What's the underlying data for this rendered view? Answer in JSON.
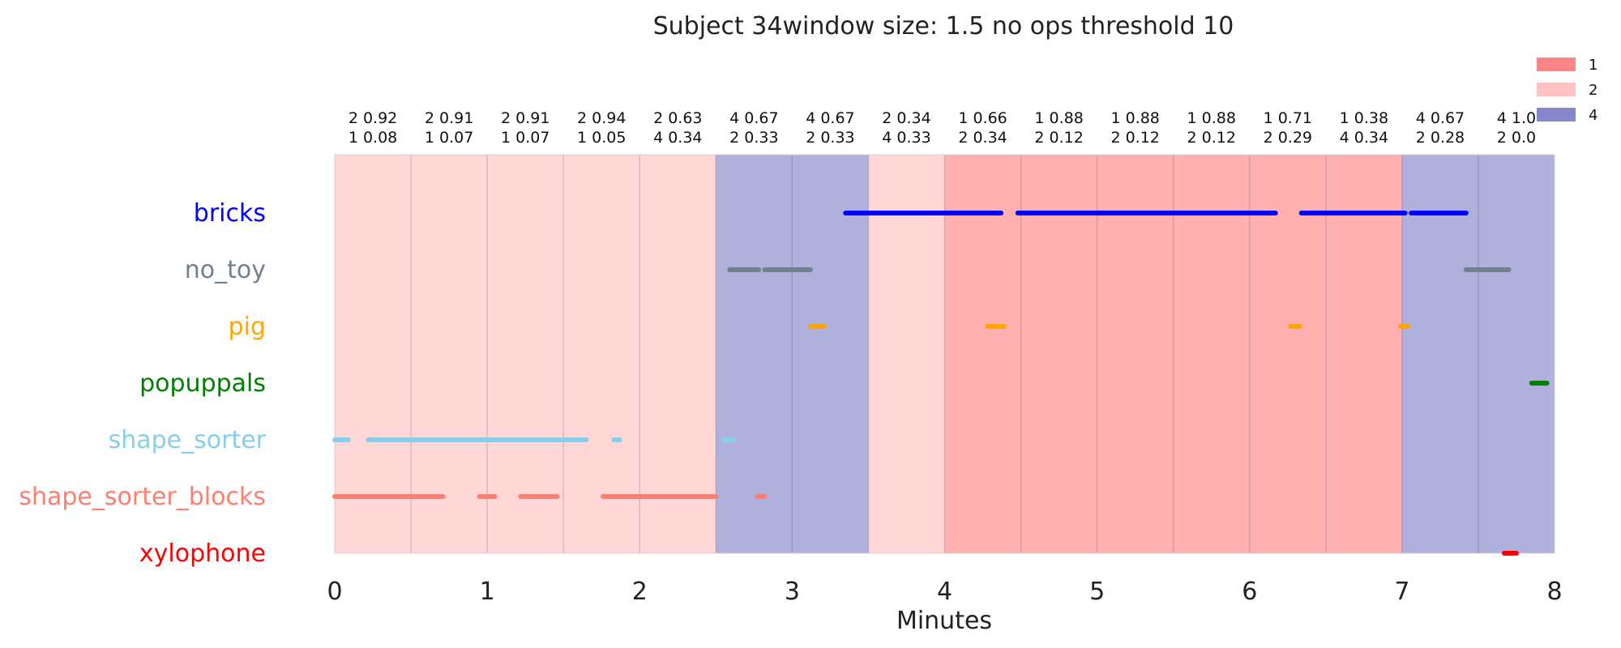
{
  "chart_data": {
    "type": "timeline",
    "title": "Subject 34window size: 1.5 no ops threshold 10",
    "xlabel": "Minutes",
    "xlim": [
      0,
      8
    ],
    "x_ticks": [
      "0",
      "1",
      "2",
      "3",
      "4",
      "5",
      "6",
      "7",
      "8"
    ],
    "colors": {
      "1": "#ff7f7f",
      "2": "#ffbfbf",
      "4": "#8080c8"
    },
    "legend": {
      "placement": "top-right",
      "entries": [
        "1",
        "2",
        "4"
      ]
    },
    "windows": [
      {
        "start": 0.0,
        "end": 0.5,
        "state": "2",
        "line1": "2 0.92",
        "line2": "1 0.08"
      },
      {
        "start": 0.5,
        "end": 1.0,
        "state": "2",
        "line1": "2 0.91",
        "line2": "1 0.07"
      },
      {
        "start": 1.0,
        "end": 1.5,
        "state": "2",
        "line1": "2 0.91",
        "line2": "1 0.07"
      },
      {
        "start": 1.5,
        "end": 2.0,
        "state": "2",
        "line1": "2 0.94",
        "line2": "1 0.05"
      },
      {
        "start": 2.0,
        "end": 2.5,
        "state": "2",
        "line1": "2 0.63",
        "line2": "4 0.34"
      },
      {
        "start": 2.5,
        "end": 3.0,
        "state": "4",
        "line1": "4 0.67",
        "line2": "2 0.33"
      },
      {
        "start": 3.0,
        "end": 3.5,
        "state": "4",
        "line1": "4 0.67",
        "line2": "2 0.33"
      },
      {
        "start": 3.5,
        "end": 4.0,
        "state": "2",
        "line1": "2 0.34",
        "line2": "4 0.33"
      },
      {
        "start": 4.0,
        "end": 4.5,
        "state": "1",
        "line1": "1 0.66",
        "line2": "2 0.34"
      },
      {
        "start": 4.5,
        "end": 5.0,
        "state": "1",
        "line1": "1 0.88",
        "line2": "2 0.12"
      },
      {
        "start": 5.0,
        "end": 5.5,
        "state": "1",
        "line1": "1 0.88",
        "line2": "2 0.12"
      },
      {
        "start": 5.5,
        "end": 6.0,
        "state": "1",
        "line1": "1 0.88",
        "line2": "2 0.12"
      },
      {
        "start": 6.0,
        "end": 6.5,
        "state": "1",
        "line1": "1 0.71",
        "line2": "2 0.29"
      },
      {
        "start": 6.5,
        "end": 7.0,
        "state": "1",
        "line1": "1 0.38",
        "line2": "4 0.34"
      },
      {
        "start": 7.0,
        "end": 7.5,
        "state": "4",
        "line1": "4 0.67",
        "line2": "2 0.28"
      },
      {
        "start": 7.5,
        "end": 8.0,
        "state": "4",
        "line1": "4 1.0",
        "line2": "2 0.0"
      }
    ],
    "series": [
      {
        "name": "bricks",
        "color": "#0000ff",
        "segments": [
          [
            3.35,
            4.37
          ],
          [
            4.48,
            6.17
          ],
          [
            6.34,
            7.02
          ],
          [
            7.06,
            7.42
          ]
        ]
      },
      {
        "name": "no_toy",
        "color": "#708090",
        "segments": [
          [
            2.59,
            2.78
          ],
          [
            2.82,
            3.12
          ],
          [
            7.42,
            7.7
          ]
        ]
      },
      {
        "name": "pig",
        "color": "#ffa500",
        "segments": [
          [
            3.12,
            3.21
          ],
          [
            4.28,
            4.39
          ],
          [
            6.27,
            6.33
          ],
          [
            6.99,
            7.04
          ]
        ]
      },
      {
        "name": "popuppals",
        "color": "#008000",
        "segments": [
          [
            7.85,
            7.95
          ]
        ]
      },
      {
        "name": "shape_sorter",
        "color": "#87ceeb",
        "segments": [
          [
            0.0,
            0.09
          ],
          [
            0.22,
            1.65
          ],
          [
            1.83,
            1.87
          ],
          [
            2.55,
            2.62
          ]
        ]
      },
      {
        "name": "shape_sorter_blocks",
        "color": "#fa8072",
        "segments": [
          [
            0.0,
            0.71
          ],
          [
            0.95,
            1.05
          ],
          [
            1.22,
            1.46
          ],
          [
            1.76,
            2.5
          ],
          [
            2.77,
            2.82
          ]
        ]
      },
      {
        "name": "xylophone",
        "color": "#ff0000",
        "segments": [
          [
            7.67,
            7.75
          ]
        ]
      }
    ]
  }
}
